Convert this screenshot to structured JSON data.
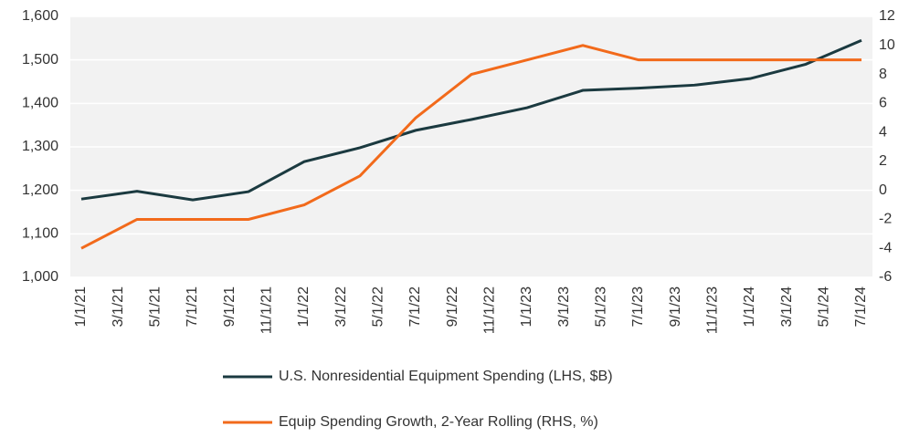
{
  "chart_data": {
    "type": "line",
    "x": [
      "1/1/21",
      "4/1/21",
      "7/1/21",
      "10/1/21",
      "1/1/22",
      "4/1/22",
      "7/1/22",
      "10/1/22",
      "1/1/23",
      "4/1/23",
      "7/1/23",
      "10/1/23",
      "1/1/24",
      "4/1/24",
      "7/1/24"
    ],
    "xticks": [
      "1/1/21",
      "3/1/21",
      "5/1/21",
      "7/1/21",
      "9/1/21",
      "11/1/21",
      "1/1/22",
      "3/1/22",
      "5/1/22",
      "7/1/22",
      "9/1/22",
      "11/1/22",
      "1/1/23",
      "3/1/23",
      "5/1/23",
      "7/1/23",
      "9/1/23",
      "11/1/23",
      "1/1/24",
      "3/1/24",
      "5/1/24",
      "7/1/24"
    ],
    "series": [
      {
        "name": "U.S. Nonresidential Equipment Spending (LHS, $B)",
        "color": "#1b3a40",
        "values": [
          1180,
          1198,
          1178,
          1197,
          1266,
          1298,
          1338,
          1363,
          1390,
          1430,
          1435,
          1442,
          1457,
          1490,
          1545
        ]
      },
      {
        "name": "Equip Spending Growth, 2-Year Rolling (RHS, %)",
        "color": "#f26a1b",
        "axis": "y2",
        "values": [
          -4,
          -2,
          -2,
          -2,
          -1,
          1,
          5,
          8,
          9,
          10,
          9,
          9,
          9,
          9,
          9
        ]
      }
    ],
    "ylim": [
      1000,
      1600
    ],
    "yticks": [
      {
        "value": 1000,
        "label": "1,000"
      },
      {
        "value": 1100,
        "label": "1,100"
      },
      {
        "value": 1200,
        "label": "1,200"
      },
      {
        "value": 1300,
        "label": "1,300"
      },
      {
        "value": 1400,
        "label": "1,400"
      },
      {
        "value": 1500,
        "label": "1,500"
      },
      {
        "value": 1600,
        "label": "1,600"
      }
    ],
    "y2lim": [
      -6,
      12
    ],
    "y2ticks": [
      -6,
      -4,
      -2,
      0,
      2,
      4,
      6,
      8,
      10,
      12
    ],
    "grid": true
  }
}
